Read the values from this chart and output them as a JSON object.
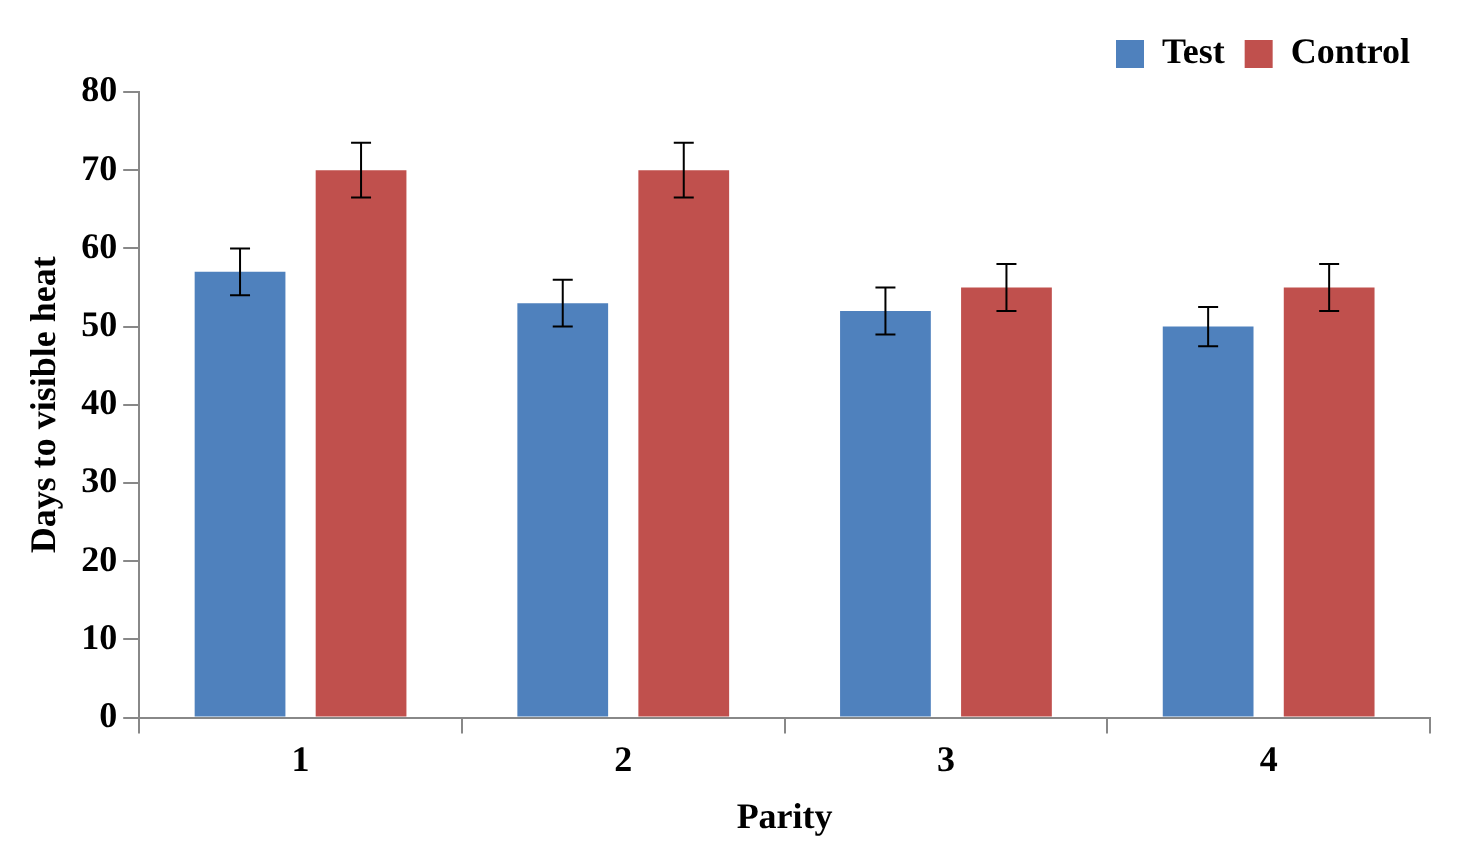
{
  "chart_data": {
    "type": "bar",
    "xlabel": "Parity",
    "ylabel": "Days to visible heat",
    "categories": [
      "1",
      "2",
      "3",
      "4"
    ],
    "series": [
      {
        "name": "Test",
        "color": "#4f81bd",
        "values": [
          57,
          53,
          52,
          50
        ],
        "errors": [
          3,
          3,
          3,
          2.5
        ]
      },
      {
        "name": "Control",
        "color": "#c0504d",
        "values": [
          70,
          70,
          55,
          55
        ],
        "errors": [
          3.5,
          3.5,
          3,
          3
        ]
      }
    ],
    "ylim": [
      0,
      80
    ],
    "yticks": [
      0,
      10,
      20,
      30,
      40,
      50,
      60,
      70,
      80
    ],
    "grid": false,
    "legend": "top right"
  }
}
